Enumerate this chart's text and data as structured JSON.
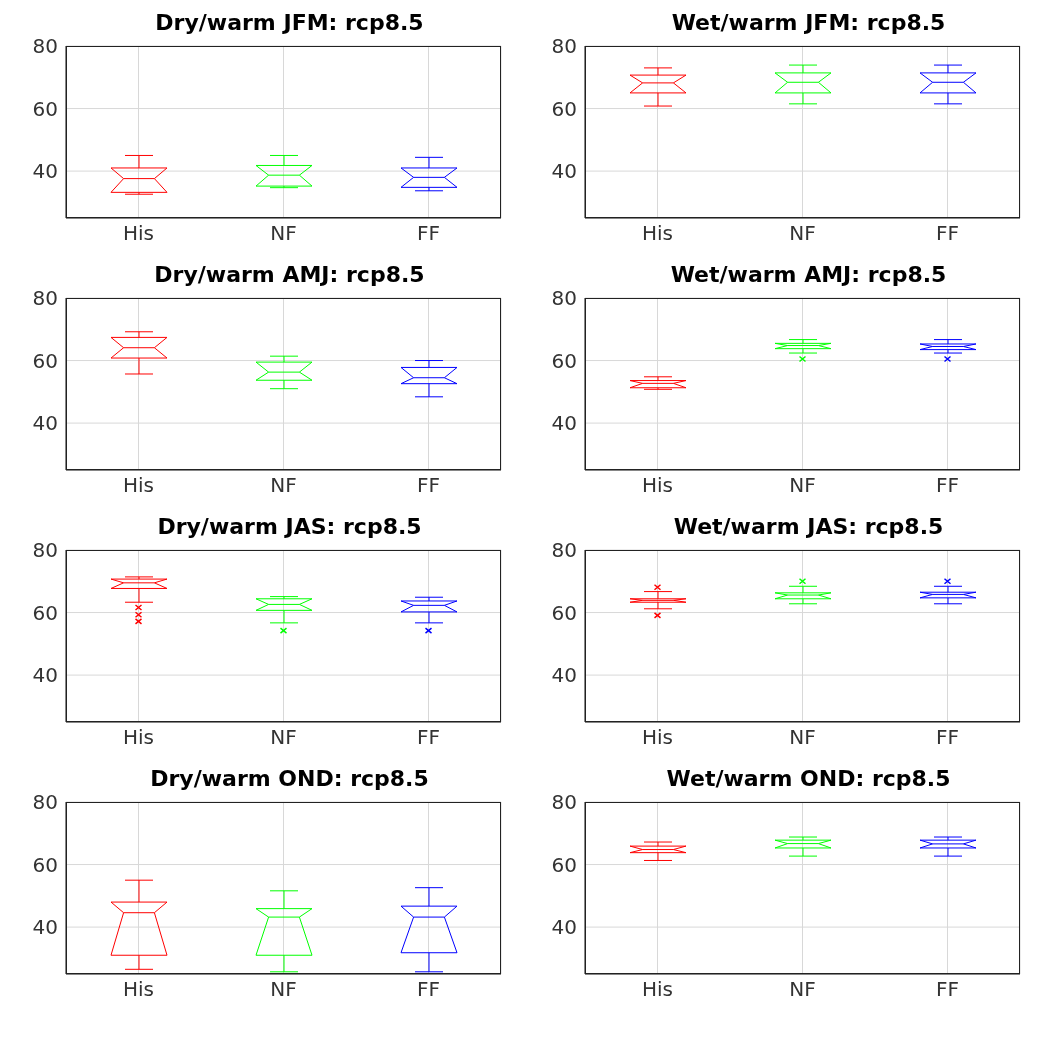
{
  "chart_data": [
    {
      "type": "box",
      "title": "Dry/warm JFM: rcp8.5",
      "categories": [
        "His",
        "NF",
        "FF"
      ],
      "colors": [
        "#ff0000",
        "#00ff00",
        "#0000ff"
      ],
      "ylim": [
        25,
        80
      ],
      "yticks": [
        40,
        60,
        80
      ],
      "grid": true,
      "boxes": [
        {
          "low": 32.6,
          "q1": 33.2,
          "median": 37.6,
          "q3": 41,
          "high": 45
        },
        {
          "low": 34.7,
          "q1": 35.2,
          "median": 38.7,
          "q3": 41.8,
          "high": 45
        },
        {
          "low": 33.7,
          "q1": 34.8,
          "median": 38,
          "q3": 41,
          "high": 44.4
        }
      ]
    },
    {
      "type": "box",
      "title": "Wet/warm JFM: rcp8.5",
      "categories": [
        "His",
        "NF",
        "FF"
      ],
      "colors": [
        "#ff0000",
        "#00ff00",
        "#0000ff"
      ],
      "ylim": [
        25,
        80
      ],
      "yticks": [
        40,
        60,
        80
      ],
      "grid": true,
      "boxes": [
        {
          "low": 60.8,
          "q1": 65,
          "median": 68.2,
          "q3": 70.7,
          "high": 73
        },
        {
          "low": 61.5,
          "q1": 65,
          "median": 68.4,
          "q3": 71.4,
          "high": 73.9
        },
        {
          "low": 61.5,
          "q1": 65,
          "median": 68.4,
          "q3": 71.4,
          "high": 73.9
        }
      ]
    },
    {
      "type": "box",
      "title": "Dry/warm AMJ: rcp8.5",
      "categories": [
        "His",
        "NF",
        "FF"
      ],
      "colors": [
        "#ff0000",
        "#00ff00",
        "#0000ff"
      ],
      "ylim": [
        25,
        80
      ],
      "yticks": [
        40,
        60,
        80
      ],
      "grid": true,
      "boxes": [
        {
          "low": 55.7,
          "q1": 60.8,
          "median": 64.1,
          "q3": 67.4,
          "high": 69.2
        },
        {
          "low": 51,
          "q1": 53.7,
          "median": 56.3,
          "q3": 59.5,
          "high": 61.4
        },
        {
          "low": 48.4,
          "q1": 52.6,
          "median": 54.5,
          "q3": 57.8,
          "high": 60
        }
      ]
    },
    {
      "type": "box",
      "title": "Wet/warm AMJ: rcp8.5",
      "categories": [
        "His",
        "NF",
        "FF"
      ],
      "colors": [
        "#ff0000",
        "#00ff00",
        "#0000ff"
      ],
      "ylim": [
        25,
        80
      ],
      "yticks": [
        40,
        60,
        80
      ],
      "grid": true,
      "boxes": [
        {
          "low": 50.8,
          "q1": 51.3,
          "median": 52.7,
          "q3": 53.6,
          "high": 54.8
        },
        {
          "low": 62.4,
          "q1": 63.8,
          "median": 64.8,
          "q3": 65.5,
          "high": 66.7,
          "outliers": [
            60.5
          ]
        },
        {
          "low": 62.4,
          "q1": 63.5,
          "median": 64.5,
          "q3": 65.3,
          "high": 66.7,
          "outliers": [
            60.5
          ]
        }
      ]
    },
    {
      "type": "box",
      "title": "Dry/warm JAS: rcp8.5",
      "categories": [
        "His",
        "NF",
        "FF"
      ],
      "colors": [
        "#ff0000",
        "#00ff00",
        "#0000ff"
      ],
      "ylim": [
        25,
        80
      ],
      "yticks": [
        40,
        60,
        80
      ],
      "grid": true,
      "boxes": [
        {
          "low": 63.3,
          "q1": 67.7,
          "median": 69.5,
          "q3": 70.7,
          "high": 71.4,
          "outliers": [
            61.6,
            59.3,
            57.2
          ]
        },
        {
          "low": 56.7,
          "q1": 60.7,
          "median": 62.6,
          "q3": 64.4,
          "high": 65.1,
          "outliers": [
            54.2
          ]
        },
        {
          "low": 56.7,
          "q1": 60.2,
          "median": 62.3,
          "q3": 63.7,
          "high": 64.9,
          "outliers": [
            54.2
          ]
        }
      ]
    },
    {
      "type": "box",
      "title": "Wet/warm JAS: rcp8.5",
      "categories": [
        "His",
        "NF",
        "FF"
      ],
      "colors": [
        "#ff0000",
        "#00ff00",
        "#0000ff"
      ],
      "ylim": [
        25,
        80
      ],
      "yticks": [
        40,
        60,
        80
      ],
      "grid": true,
      "boxes": [
        {
          "low": 61.2,
          "q1": 63.3,
          "median": 63.9,
          "q3": 64.4,
          "high": 66.7,
          "outliers": [
            68.1,
            59.1
          ]
        },
        {
          "low": 62.8,
          "q1": 64.4,
          "median": 65.6,
          "q3": 66.3,
          "high": 68.4,
          "outliers": [
            70
          ]
        },
        {
          "low": 62.8,
          "q1": 64.7,
          "median": 65.8,
          "q3": 66.5,
          "high": 68.4,
          "outliers": [
            70
          ]
        }
      ]
    },
    {
      "type": "box",
      "title": "Dry/warm OND: rcp8.5",
      "categories": [
        "His",
        "NF",
        "FF"
      ],
      "colors": [
        "#ff0000",
        "#00ff00",
        "#0000ff"
      ],
      "ylim": [
        25,
        80
      ],
      "yticks": [
        40,
        60,
        80
      ],
      "grid": true,
      "boxes": [
        {
          "low": 26.5,
          "q1": 31,
          "median": 44.6,
          "q3": 48,
          "high": 55
        },
        {
          "low": 25.7,
          "q1": 31,
          "median": 43.2,
          "q3": 45.9,
          "high": 51.6
        },
        {
          "low": 25.7,
          "q1": 31.8,
          "median": 43.2,
          "q3": 46.7,
          "high": 52.6
        }
      ]
    },
    {
      "type": "box",
      "title": "Wet/warm OND: rcp8.5",
      "categories": [
        "His",
        "NF",
        "FF"
      ],
      "colors": [
        "#ff0000",
        "#00ff00",
        "#0000ff"
      ],
      "ylim": [
        25,
        80
      ],
      "yticks": [
        40,
        60,
        80
      ],
      "grid": true,
      "boxes": [
        {
          "low": 61.3,
          "q1": 63.8,
          "median": 64.8,
          "q3": 65.9,
          "high": 67.2
        },
        {
          "low": 62.7,
          "q1": 65.3,
          "median": 66.7,
          "q3": 67.8,
          "high": 68.8
        },
        {
          "low": 62.7,
          "q1": 65.3,
          "median": 66.6,
          "q3": 67.8,
          "high": 68.8
        }
      ]
    }
  ]
}
